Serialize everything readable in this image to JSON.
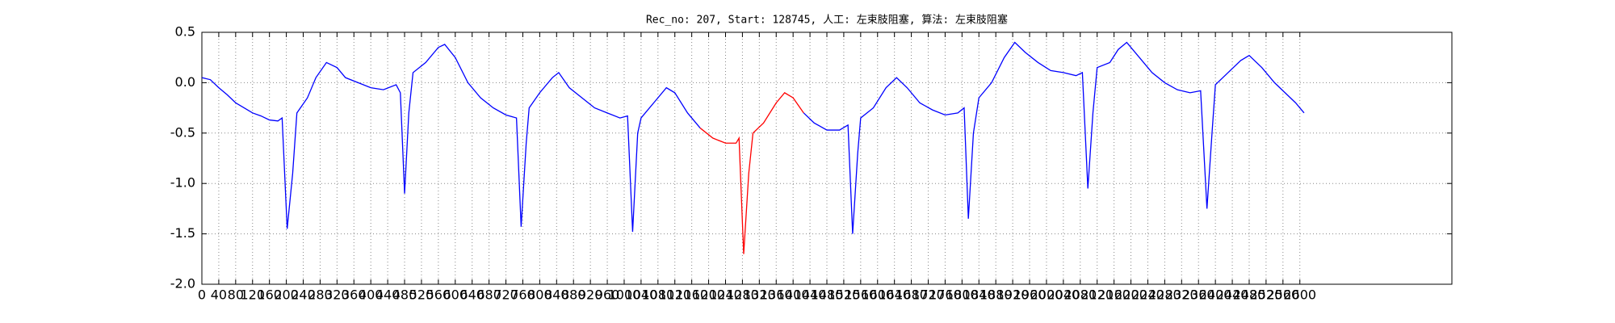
{
  "chart_data": {
    "type": "line",
    "title": "Rec_no: 207, Start: 128745, 人工: 左束肢阻塞, 算法: 左束肢阻塞",
    "xlim": [
      0,
      2960
    ],
    "ylim": [
      -2.0,
      0.5
    ],
    "yticks": [
      {
        "value": -2.0,
        "label": "-2.0"
      },
      -1.5,
      {
        "value": -1.0,
        "label": "-1.0"
      },
      -0.5,
      {
        "value": 0,
        "label": "0.0"
      },
      0.5
    ],
    "xticks": [
      0,
      40,
      80,
      120,
      160,
      200,
      240,
      280,
      320,
      360,
      400,
      440,
      480,
      520,
      560,
      600,
      640,
      680,
      720,
      760,
      800,
      840,
      880,
      920,
      960,
      1000,
      1040,
      1080,
      1120,
      1160,
      1200,
      1240,
      1280,
      1320,
      1360,
      1400,
      1440,
      1480,
      1520,
      1560,
      1600,
      1640,
      1680,
      1720,
      1760,
      1800,
      1840,
      1880,
      1920,
      1960,
      2000,
      2040,
      2080,
      2120,
      2160,
      2200,
      2240,
      2280,
      2320,
      2360,
      2400,
      2440,
      2480,
      2520,
      2560,
      2600
    ],
    "grid": true,
    "series": [
      {
        "color": "#0000ff",
        "x": [
          0,
          20,
          40,
          60,
          80,
          100,
          120,
          140,
          160,
          180,
          190,
          202,
          215,
          225,
          250,
          270,
          295,
          320,
          340,
          370,
          400,
          430,
          460,
          470,
          480,
          490,
          500,
          530,
          560,
          575,
          600,
          630,
          660,
          690,
          720,
          745,
          756,
          768,
          775,
          800,
          830,
          845,
          870,
          900,
          930,
          960,
          990,
          1008,
          1020,
          1032,
          1040,
          1070,
          1100,
          1120,
          1150,
          1180
        ],
        "values": [
          0.05,
          0.03,
          -0.05,
          -0.12,
          -0.2,
          -0.25,
          -0.3,
          -0.33,
          -0.37,
          -0.38,
          -0.35,
          -1.45,
          -0.9,
          -0.3,
          -0.15,
          0.05,
          0.2,
          0.15,
          0.05,
          0.0,
          -0.05,
          -0.07,
          -0.02,
          -0.1,
          -1.1,
          -0.3,
          0.1,
          0.2,
          0.35,
          0.38,
          0.25,
          0.0,
          -0.15,
          -0.25,
          -0.32,
          -0.35,
          -1.43,
          -0.6,
          -0.25,
          -0.1,
          0.05,
          0.1,
          -0.05,
          -0.15,
          -0.25,
          -0.3,
          -0.35,
          -0.33,
          -1.48,
          -0.5,
          -0.35,
          -0.2,
          -0.05,
          -0.1,
          -0.3,
          -0.45
        ]
      },
      {
        "color": "#ff0000",
        "x": [
          1180,
          1210,
          1240,
          1265,
          1272,
          1283,
          1295,
          1305,
          1330,
          1360,
          1380,
          1400,
          1425
        ],
        "values": [
          -0.45,
          -0.55,
          -0.6,
          -0.6,
          -0.55,
          -1.7,
          -0.9,
          -0.5,
          -0.4,
          -0.2,
          -0.1,
          -0.15,
          -0.3
        ]
      },
      {
        "color": "#0000ff",
        "x": [
          1425,
          1450,
          1480,
          1510,
          1530,
          1541,
          1553,
          1560,
          1590,
          1620,
          1645,
          1670,
          1700,
          1730,
          1760,
          1790,
          1805,
          1815,
          1827,
          1840,
          1870,
          1900,
          1925,
          1950,
          1980,
          2010,
          2040,
          2070,
          2085,
          2098,
          2110,
          2120,
          2150,
          2170,
          2190,
          2220,
          2250,
          2280,
          2310,
          2340,
          2365,
          2380,
          2392,
          2400,
          2430,
          2460,
          2480,
          2510,
          2540,
          2570,
          2590,
          2610
        ],
        "values": [
          -0.3,
          -0.4,
          -0.47,
          -0.47,
          -0.42,
          -1.5,
          -0.7,
          -0.35,
          -0.25,
          -0.05,
          0.05,
          -0.05,
          -0.2,
          -0.27,
          -0.32,
          -0.3,
          -0.25,
          -1.35,
          -0.5,
          -0.15,
          0.0,
          0.25,
          0.4,
          0.3,
          0.2,
          0.12,
          0.1,
          0.07,
          0.1,
          -1.05,
          -0.3,
          0.15,
          0.2,
          0.33,
          0.4,
          0.25,
          0.1,
          0.0,
          -0.07,
          -0.1,
          -0.08,
          -1.25,
          -0.5,
          -0.02,
          0.1,
          0.22,
          0.27,
          0.15,
          0.0,
          -0.12,
          -0.2,
          -0.3
        ]
      }
    ]
  }
}
